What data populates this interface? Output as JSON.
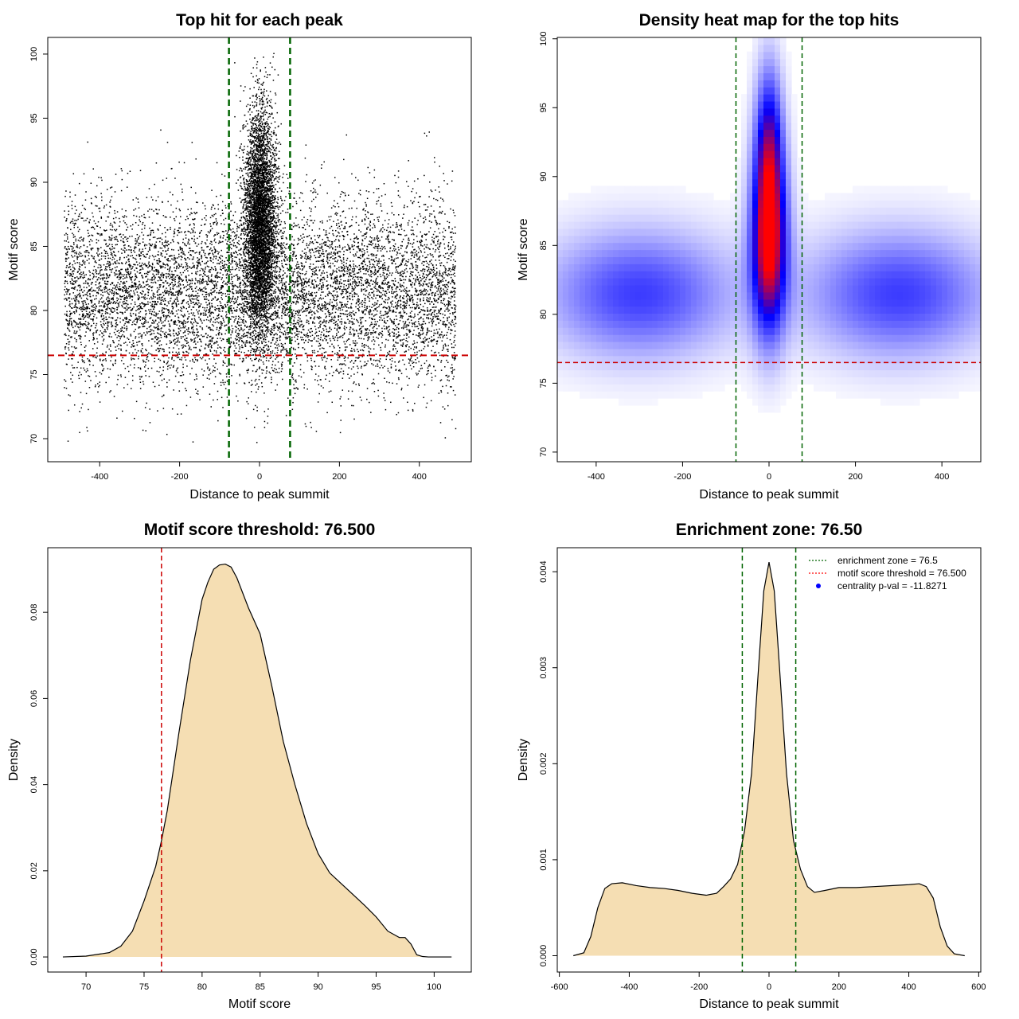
{
  "chart_data": [
    {
      "id": "scatter",
      "type": "scatter",
      "title": "Top hit for each peak",
      "xlabel": "Distance to peak summit",
      "ylabel": "Motif score",
      "xlim": [
        -530,
        530
      ],
      "ylim": [
        68.2,
        101.3
      ],
      "xticks": [
        -400,
        -200,
        0,
        200,
        400
      ],
      "yticks": [
        70,
        75,
        80,
        85,
        90,
        95,
        100
      ],
      "xtick_labels": [
        "-400",
        "-200",
        "0",
        "200",
        "400"
      ],
      "ytick_labels": [
        "70",
        "75",
        "80",
        "85",
        "90",
        "95",
        "100"
      ],
      "x_range_of_points": [
        -490,
        490
      ],
      "background_points": {
        "count": 9000,
        "score_mean": 81.5,
        "score_sd": 3.6
      },
      "central_points": {
        "count": 5000,
        "distance_sd": 20,
        "score_mean": 87,
        "score_sd": 4.5
      },
      "vlines": [
        {
          "x": -76.5,
          "color": "#006400",
          "style": "dashed"
        },
        {
          "x": 76.5,
          "color": "#006400",
          "style": "dashed"
        }
      ],
      "hlines": [
        {
          "y": 76.5,
          "color": "#cc0000",
          "style": "dashed"
        }
      ],
      "colors": {
        "points": "#000000"
      }
    },
    {
      "id": "heatmap",
      "type": "heatmap",
      "title": "Density heat map for the top hits",
      "xlabel": "Distance to peak summit",
      "ylabel": "Motif score",
      "xlim": [
        -490,
        490
      ],
      "ylim": [
        69.3,
        100.1
      ],
      "xticks": [
        -400,
        -200,
        0,
        200,
        400
      ],
      "yticks": [
        70,
        75,
        80,
        85,
        90,
        95,
        100
      ],
      "xtick_labels": [
        "-400",
        "-200",
        "0",
        "200",
        "400"
      ],
      "ytick_labels": [
        "70",
        "75",
        "80",
        "85",
        "90",
        "95",
        "100"
      ],
      "density_components": [
        {
          "label": "central peak",
          "x": 0,
          "y": 85.5,
          "sx": 28,
          "sy": 4.5,
          "weight": 1.0
        },
        {
          "label": "upper tail",
          "x": 0,
          "y": 92.5,
          "sx": 22,
          "sy": 4,
          "weight": 0.55
        },
        {
          "label": "left background",
          "x": -300,
          "y": 81.5,
          "sx": 150,
          "sy": 3.2,
          "weight": 0.42
        },
        {
          "label": "right background",
          "x": 300,
          "y": 81.5,
          "sx": 150,
          "sy": 3.2,
          "weight": 0.42
        }
      ],
      "color_scale": [
        "#ffffff",
        "#0000ff",
        "#ff0000"
      ],
      "vlines": [
        {
          "x": -76.5,
          "color": "#006400",
          "style": "dashed"
        },
        {
          "x": 76.5,
          "color": "#006400",
          "style": "dashed"
        }
      ],
      "hlines": [
        {
          "y": 76.5,
          "color": "#cc0000",
          "style": "dashed"
        }
      ]
    },
    {
      "id": "motif-density",
      "type": "area",
      "title": "Motif score threshold: 76.500",
      "xlabel": "Motif score",
      "ylabel": "Density",
      "xlim": [
        66.7,
        103.2
      ],
      "ylim": [
        -0.0035,
        0.095
      ],
      "xticks": [
        70,
        75,
        80,
        85,
        90,
        95,
        100
      ],
      "yticks": [
        0,
        0.02,
        0.04,
        0.06,
        0.08
      ],
      "xtick_labels": [
        "70",
        "75",
        "80",
        "85",
        "90",
        "95",
        "100"
      ],
      "ytick_labels": [
        "0.00",
        "0.02",
        "0.04",
        "0.06",
        "0.08"
      ],
      "x": [
        68,
        70,
        72,
        73,
        74,
        75,
        76,
        76.5,
        77,
        78,
        79,
        80,
        80.5,
        81,
        81.5,
        82,
        82.5,
        83,
        84,
        85,
        86,
        87,
        88,
        89,
        90,
        91,
        92,
        93,
        94,
        95,
        96,
        97,
        97.5,
        98,
        98.5,
        99,
        99.5,
        100,
        101,
        101.5
      ],
      "y": [
        0,
        0.0002,
        0.001,
        0.0025,
        0.006,
        0.013,
        0.021,
        0.027,
        0.034,
        0.052,
        0.069,
        0.083,
        0.087,
        0.09,
        0.091,
        0.0912,
        0.0905,
        0.088,
        0.081,
        0.075,
        0.063,
        0.05,
        0.04,
        0.031,
        0.024,
        0.0195,
        0.017,
        0.0145,
        0.012,
        0.0093,
        0.006,
        0.0045,
        0.0045,
        0.003,
        0.0005,
        0.0001,
        0,
        0,
        0,
        0
      ],
      "vlines": [
        {
          "x": 76.5,
          "color": "#cc0000",
          "style": "dashed"
        }
      ],
      "colors": {
        "fill": "#f5deb3",
        "line": "#000000"
      }
    },
    {
      "id": "distance-density",
      "type": "area",
      "title": "Enrichment zone: 76.50",
      "xlabel": "Distance to peak summit",
      "ylabel": "Density",
      "xlim": [
        -606,
        606
      ],
      "ylim": [
        -0.00017,
        0.00425
      ],
      "xticks": [
        -600,
        -400,
        -200,
        0,
        200,
        400,
        600
      ],
      "yticks": [
        0,
        0.001,
        0.002,
        0.003,
        0.004
      ],
      "xtick_labels": [
        "-600",
        "-400",
        "-200",
        "0",
        "200",
        "400",
        "600"
      ],
      "ytick_labels": [
        "0.000",
        "0.001",
        "0.002",
        "0.003",
        "0.004"
      ],
      "x": [
        -560,
        -530,
        -510,
        -490,
        -470,
        -450,
        -420,
        -380,
        -340,
        -300,
        -260,
        -220,
        -180,
        -150,
        -130,
        -110,
        -90,
        -70,
        -50,
        -30,
        -15,
        0,
        15,
        30,
        50,
        70,
        90,
        110,
        130,
        160,
        200,
        250,
        300,
        350,
        400,
        430,
        450,
        470,
        490,
        510,
        530,
        560
      ],
      "y": [
        0,
        3e-05,
        0.0002,
        0.0005,
        0.0007,
        0.00075,
        0.00076,
        0.00073,
        0.00071,
        0.0007,
        0.00068,
        0.00065,
        0.00063,
        0.00065,
        0.00072,
        0.0008,
        0.00095,
        0.0013,
        0.0019,
        0.003,
        0.0038,
        0.0041,
        0.0038,
        0.003,
        0.0019,
        0.0012,
        0.0009,
        0.00072,
        0.00066,
        0.00068,
        0.00071,
        0.00071,
        0.00072,
        0.00073,
        0.00074,
        0.00075,
        0.00072,
        0.0006,
        0.0003,
        0.0001,
        2e-05,
        0
      ],
      "vlines": [
        {
          "x": -76.5,
          "color": "#006400",
          "style": "dashed"
        },
        {
          "x": 76.5,
          "color": "#006400",
          "style": "dashed"
        }
      ],
      "legend": {
        "position": "top-right",
        "entries": [
          {
            "label": "enrichment zone = 76.5",
            "kind": "dotted-line",
            "color": "#006400"
          },
          {
            "label": "motif score threshold = 76.500",
            "kind": "dotted-line",
            "color": "#ff0000"
          },
          {
            "label": "centrality p-val = -11.8271",
            "kind": "point",
            "color": "#0000ff"
          }
        ]
      },
      "colors": {
        "fill": "#f5deb3",
        "line": "#000000"
      }
    }
  ]
}
